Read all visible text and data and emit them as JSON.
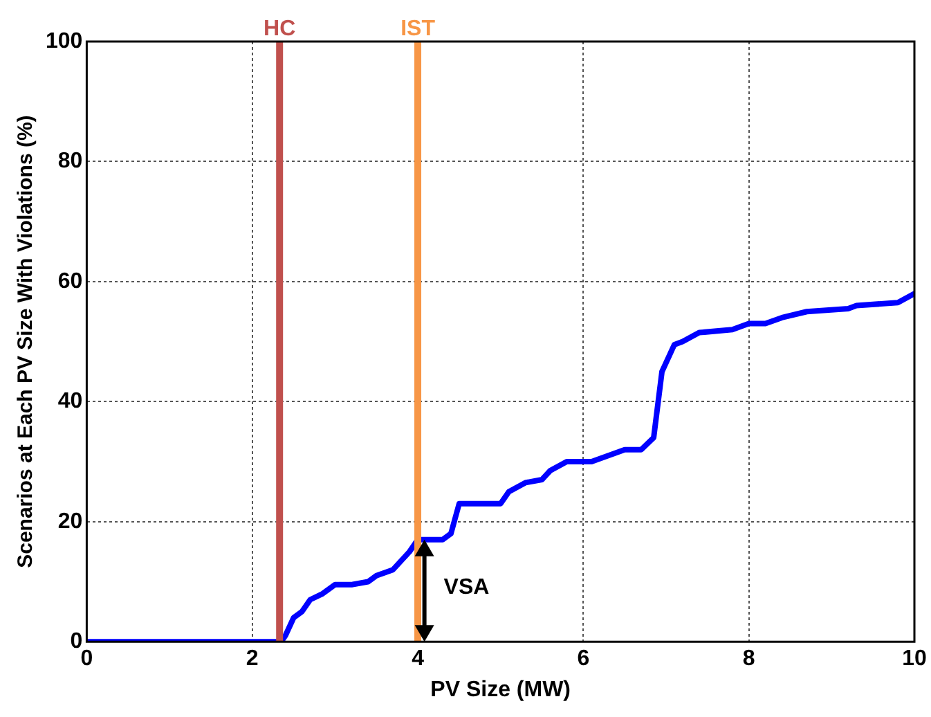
{
  "chart_data": {
    "type": "line",
    "xlabel": "PV Size (MW)",
    "ylabel": "Scenarios at Each PV Size With Violations (%)",
    "series": [
      {
        "color": "#0000ff",
        "x": [
          0,
          2.35,
          2.4,
          2.5,
          2.6,
          2.7,
          2.85,
          3.0,
          3.2,
          3.4,
          3.5,
          3.7,
          3.9,
          4.0,
          4.3,
          4.4,
          4.5,
          5.0,
          5.1,
          5.3,
          5.5,
          5.6,
          5.8,
          6.1,
          6.5,
          6.7,
          6.85,
          6.95,
          7.1,
          7.2,
          7.4,
          7.8,
          8.0,
          8.2,
          8.4,
          8.7,
          9.2,
          9.3,
          9.8,
          10
        ],
        "values": [
          0,
          0,
          1,
          4,
          5,
          7,
          8,
          9.5,
          9.5,
          10,
          11,
          12,
          15,
          17,
          17,
          18,
          23,
          23,
          25,
          26.5,
          27,
          28.5,
          30,
          30,
          32,
          32,
          34,
          45,
          49.5,
          50,
          51.5,
          52,
          53,
          53,
          54,
          55,
          55.5,
          56,
          56.5,
          58
        ]
      }
    ],
    "xlim": [
      0,
      10
    ],
    "xticks": [
      0,
      2,
      4,
      6,
      8,
      10
    ],
    "ylim": [
      0,
      100
    ],
    "yticks": [
      0,
      20,
      40,
      60,
      80,
      100
    ],
    "grid": true,
    "legend": false,
    "marker": "none",
    "line_style": "solid",
    "ref_lines": [
      {
        "axis": "x",
        "value": 2.33,
        "label": "HC",
        "color": "#c0504d"
      },
      {
        "axis": "x",
        "value": 4.0,
        "label": "IST",
        "color": "#f79646"
      }
    ],
    "annotations": [
      {
        "text": "VSA",
        "x": 4.08,
        "y": 9
      }
    ]
  }
}
